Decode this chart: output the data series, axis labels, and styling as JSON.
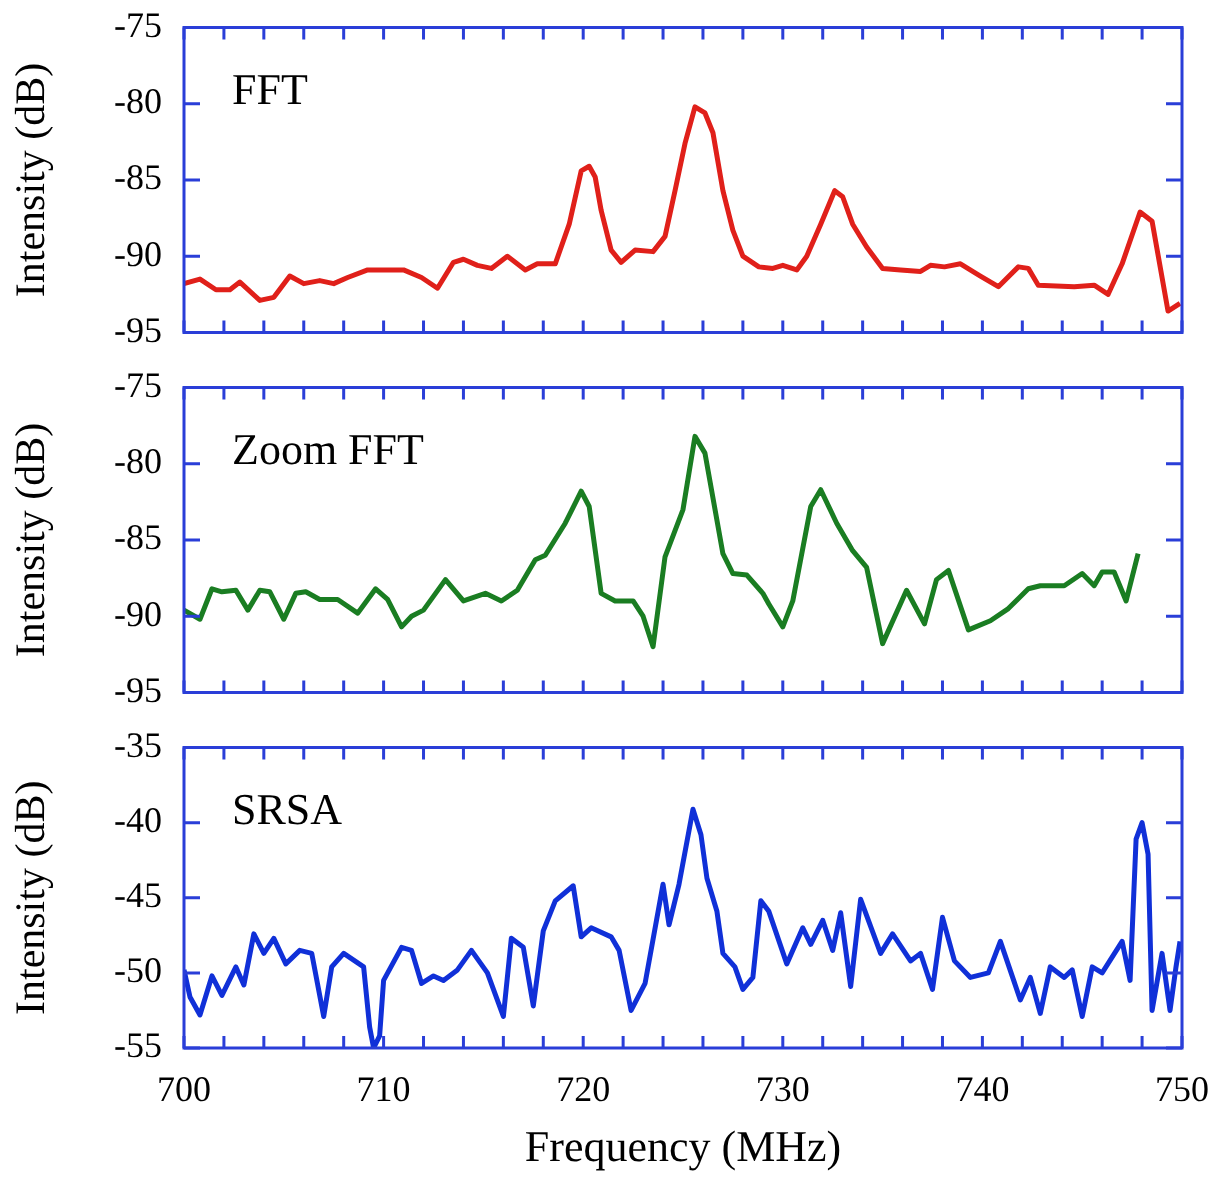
{
  "chart_data": [
    {
      "type": "line",
      "title": "FFT",
      "ylabel": "Intensity (dB)",
      "tick_labels": "y",
      "xlim": [
        700,
        750
      ],
      "ylim": [
        -95,
        -75
      ],
      "yticks": [
        -95,
        -90,
        -85,
        -80,
        -75
      ],
      "xticks": [
        700,
        {
          "value": 702,
          "label": null
        },
        {
          "value": 704,
          "label": null
        },
        {
          "value": 706,
          "label": null
        },
        {
          "value": 708,
          "label": null
        },
        710,
        {
          "value": 712,
          "label": null
        },
        {
          "value": 714,
          "label": null
        },
        {
          "value": 716,
          "label": null
        },
        {
          "value": 718,
          "label": null
        },
        720,
        {
          "value": 722,
          "label": null
        },
        {
          "value": 724,
          "label": null
        },
        {
          "value": 726,
          "label": null
        },
        {
          "value": 728,
          "label": null
        },
        730,
        {
          "value": 732,
          "label": null
        },
        {
          "value": 734,
          "label": null
        },
        {
          "value": 736,
          "label": null
        },
        {
          "value": 738,
          "label": null
        },
        740,
        {
          "value": 742,
          "label": null
        },
        {
          "value": 744,
          "label": null
        },
        {
          "value": 746,
          "label": null
        },
        {
          "value": 748,
          "label": null
        },
        750
      ],
      "color": "#e0201a",
      "x": [
        700,
        700.8,
        701.6,
        702.3,
        702.8,
        703.8,
        704.5,
        705.3,
        706,
        706.8,
        707.5,
        708.2,
        709.2,
        711,
        711.9,
        712.7,
        713.5,
        714,
        714.7,
        715.4,
        716.2,
        717.1,
        717.7,
        718.6,
        719.3,
        719.9,
        720.3,
        720.6,
        720.9,
        721.4,
        721.9,
        722.6,
        723.5,
        724.1,
        724.6,
        725.1,
        725.6,
        726.1,
        726.5,
        727,
        727.5,
        728,
        728.8,
        729.5,
        730,
        730.7,
        731.2,
        731.9,
        732.6,
        733,
        733.5,
        734.2,
        735,
        735.9,
        736.9,
        737.4,
        738.1,
        738.9,
        739.9,
        740.8,
        741.8,
        742.3,
        742.8,
        744.6,
        745.6,
        746.3,
        747,
        747.9,
        748.5,
        749.3,
        749.9
      ],
      "values": [
        -91.8,
        -91.5,
        -92.2,
        -92.2,
        -91.7,
        -92.9,
        -92.7,
        -91.3,
        -91.8,
        -91.6,
        -91.8,
        -91.4,
        -90.9,
        -90.9,
        -91.4,
        -92.1,
        -90.4,
        -90.2,
        -90.6,
        -90.8,
        -90,
        -90.9,
        -90.5,
        -90.5,
        -87.9,
        -84.4,
        -84.1,
        -84.8,
        -87,
        -89.6,
        -90.4,
        -89.6,
        -89.7,
        -88.7,
        -85.7,
        -82.6,
        -80.2,
        -80.6,
        -81.9,
        -85.7,
        -88.3,
        -90,
        -90.7,
        -90.8,
        -90.6,
        -90.9,
        -90,
        -87.9,
        -85.7,
        -86.1,
        -87.9,
        -89.4,
        -90.8,
        -90.9,
        -91,
        -90.6,
        -90.7,
        -90.5,
        -91.3,
        -92,
        -90.7,
        -90.8,
        -91.9,
        -92,
        -91.9,
        -92.5,
        -90.5,
        -87.1,
        -87.7,
        -93.6,
        -93.1
      ]
    },
    {
      "type": "line",
      "title": "Zoom FFT",
      "ylabel": "Intensity (dB)",
      "tick_labels": "y",
      "xlim": [
        700,
        750
      ],
      "ylim": [
        -95,
        -75
      ],
      "yticks": [
        -95,
        -90,
        -85,
        -80,
        -75
      ],
      "xticks": [
        700,
        {
          "value": 702,
          "label": null
        },
        {
          "value": 704,
          "label": null
        },
        {
          "value": 706,
          "label": null
        },
        {
          "value": 708,
          "label": null
        },
        710,
        {
          "value": 712,
          "label": null
        },
        {
          "value": 714,
          "label": null
        },
        {
          "value": 716,
          "label": null
        },
        {
          "value": 718,
          "label": null
        },
        720,
        {
          "value": 722,
          "label": null
        },
        {
          "value": 724,
          "label": null
        },
        {
          "value": 726,
          "label": null
        },
        {
          "value": 728,
          "label": null
        },
        730,
        {
          "value": 732,
          "label": null
        },
        {
          "value": 734,
          "label": null
        },
        {
          "value": 736,
          "label": null
        },
        {
          "value": 738,
          "label": null
        },
        740,
        {
          "value": 742,
          "label": null
        },
        {
          "value": 744,
          "label": null
        },
        {
          "value": 746,
          "label": null
        },
        {
          "value": 748,
          "label": null
        },
        750
      ],
      "color": "#1a7d22",
      "x": [
        700,
        700.8,
        701.4,
        701.9,
        702.6,
        703.2,
        703.8,
        704.3,
        705,
        705.6,
        706.1,
        706.8,
        707.7,
        708.7,
        709.6,
        710.2,
        710.9,
        711.4,
        712,
        713.1,
        714,
        715.1,
        715.9,
        716.7,
        717.6,
        718.1,
        719.1,
        719.9,
        720.3,
        720.9,
        721.6,
        722.5,
        723,
        723.5,
        724.1,
        725,
        725.6,
        726.1,
        727,
        727.5,
        728.2,
        729,
        729.3,
        730,
        730.5,
        731.4,
        731.9,
        732.7,
        733.5,
        734.2,
        735,
        736.2,
        737.1,
        737.7,
        738.3,
        739.3,
        740.4,
        741.3,
        742.3,
        742.9,
        744.1,
        745,
        745.6,
        746,
        746.6,
        747.2,
        747.8
      ],
      "values": [
        -89.6,
        -90.2,
        -88.2,
        -88.4,
        -88.3,
        -89.6,
        -88.3,
        -88.4,
        -90.2,
        -88.5,
        -88.4,
        -88.9,
        -88.9,
        -89.8,
        -88.2,
        -88.9,
        -90.7,
        -90,
        -89.6,
        -87.6,
        -89,
        -88.5,
        -89,
        -88.3,
        -86.3,
        -86,
        -83.9,
        -81.8,
        -82.8,
        -88.5,
        -89,
        -89,
        -90,
        -92,
        -86.1,
        -83,
        -78.2,
        -79.3,
        -85.9,
        -87.2,
        -87.3,
        -88.5,
        -89.2,
        -90.7,
        -89,
        -82.8,
        -81.7,
        -83.9,
        -85.7,
        -86.8,
        -91.8,
        -88.3,
        -90.5,
        -87.6,
        -87,
        -90.9,
        -90.3,
        -89.5,
        -88.2,
        -88,
        -88,
        -87.2,
        -88,
        -87.1,
        -87.1,
        -89,
        -85.9
      ]
    },
    {
      "type": "line",
      "title": "SRSA",
      "ylabel": "Intensity (dB)",
      "xlabel": "Frequency (MHz)",
      "xlim": [
        700,
        750
      ],
      "ylim": [
        -55,
        -35
      ],
      "yticks": [
        -55,
        -50,
        -45,
        -40,
        -35
      ],
      "xticks": [
        700,
        {
          "value": 702,
          "label": null
        },
        {
          "value": 704,
          "label": null
        },
        {
          "value": 706,
          "label": null
        },
        {
          "value": 708,
          "label": null
        },
        710,
        {
          "value": 712,
          "label": null
        },
        {
          "value": 714,
          "label": null
        },
        {
          "value": 716,
          "label": null
        },
        {
          "value": 718,
          "label": null
        },
        720,
        {
          "value": 722,
          "label": null
        },
        {
          "value": 724,
          "label": null
        },
        {
          "value": 726,
          "label": null
        },
        {
          "value": 728,
          "label": null
        },
        730,
        {
          "value": 732,
          "label": null
        },
        {
          "value": 734,
          "label": null
        },
        {
          "value": 736,
          "label": null
        },
        {
          "value": 738,
          "label": null
        },
        740,
        {
          "value": 742,
          "label": null
        },
        {
          "value": 744,
          "label": null
        },
        {
          "value": 746,
          "label": null
        },
        {
          "value": 748,
          "label": null
        },
        750
      ],
      "color": "#1030d8",
      "x": [
        700,
        700.3,
        700.8,
        701.4,
        701.9,
        702.6,
        703,
        703.5,
        704,
        704.5,
        705.1,
        705.8,
        706.4,
        707,
        707.4,
        708,
        709,
        709.3,
        709.5,
        709.8,
        710,
        710.9,
        711.4,
        711.9,
        712.5,
        713,
        713.7,
        714.4,
        715.2,
        716,
        716.4,
        717,
        717.5,
        718,
        718.6,
        719.5,
        719.9,
        720.4,
        721.4,
        721.8,
        722.4,
        723.1,
        724,
        724.3,
        724.8,
        725.5,
        725.9,
        726.2,
        726.7,
        727,
        727.6,
        728,
        728.5,
        728.9,
        729.3,
        730.2,
        731,
        731.4,
        732,
        732.5,
        732.9,
        733.4,
        733.9,
        734.9,
        735.5,
        736.4,
        736.9,
        737.5,
        738,
        738.6,
        739.4,
        740.3,
        740.9,
        741.9,
        742.4,
        742.9,
        743.4,
        744.1,
        744.5,
        745,
        745.5,
        746,
        747,
        747.4,
        747.7,
        748,
        748.3,
        748.5,
        749,
        749.4,
        749.7,
        749.9
      ],
      "values": [
        -49.8,
        -51.6,
        -52.8,
        -50.2,
        -51.5,
        -49.6,
        -50.8,
        -47.4,
        -48.7,
        -47.7,
        -49.4,
        -48.5,
        -48.7,
        -52.9,
        -49.6,
        -48.7,
        -49.6,
        -53.6,
        -55,
        -54.2,
        -50.5,
        -48.3,
        -48.5,
        -50.7,
        -50.2,
        -50.5,
        -49.8,
        -48.5,
        -50,
        -52.9,
        -47.7,
        -48.3,
        -52.2,
        -47.2,
        -45.2,
        -44.2,
        -47.6,
        -47,
        -47.6,
        -48.5,
        -52.5,
        -50.7,
        -44.1,
        -46.8,
        -44.1,
        -39.1,
        -40.8,
        -43.7,
        -45.9,
        -48.7,
        -49.6,
        -51.1,
        -50.3,
        -45.2,
        -45.9,
        -49.4,
        -47,
        -48.1,
        -46.5,
        -48.5,
        -46,
        -50.9,
        -45.1,
        -48.7,
        -47.4,
        -49.2,
        -48.7,
        -51.1,
        -46.3,
        -49.2,
        -50.3,
        -50,
        -47.9,
        -51.8,
        -50.3,
        -52.7,
        -49.6,
        -50.3,
        -49.8,
        -52.9,
        -49.6,
        -50,
        -47.9,
        -50.5,
        -41.1,
        -40,
        -42.1,
        -52.5,
        -48.7,
        -52.5,
        -49.6,
        -47.9
      ]
    }
  ]
}
